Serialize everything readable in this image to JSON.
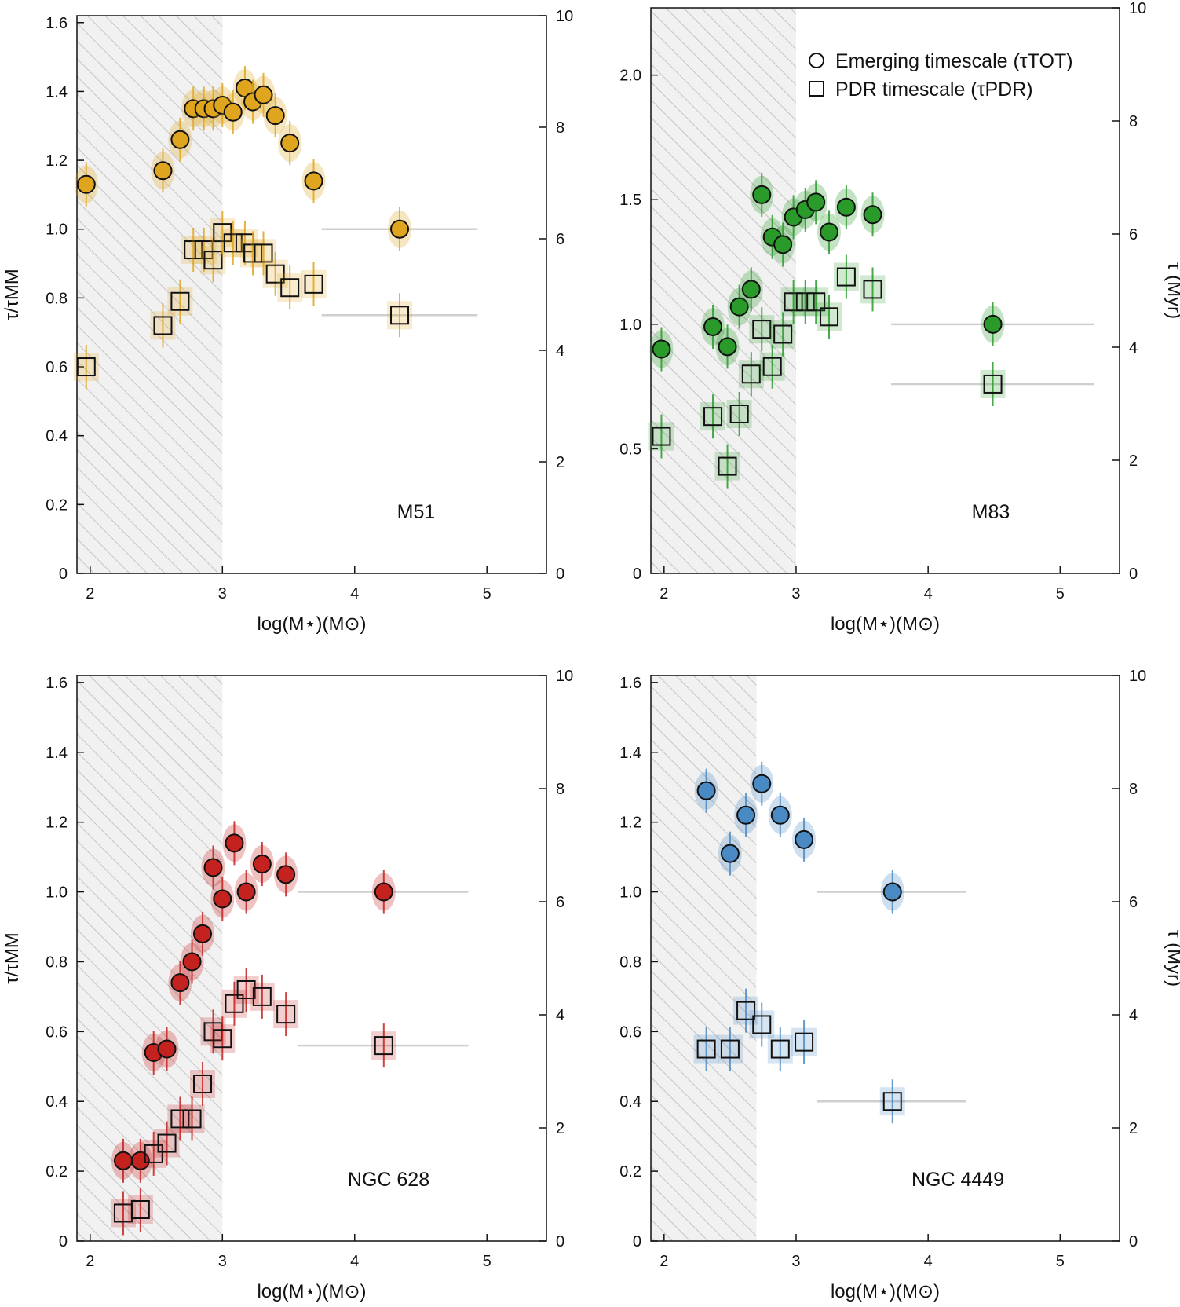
{
  "xlabel": "log(M⋆)(M⊙)",
  "ylabel_left": "τ/τMM",
  "ylabel_right": "τ (Myr)",
  "legend": {
    "circle": "Emerging timescale (τTOT)",
    "square": "PDR timescale (τPDR)"
  },
  "colors": {
    "M51": "#e0a51e",
    "M83": "#2a9a2a",
    "NGC 628": "#c4221f",
    "NGC 4449": "#4a8ac4",
    "hatch": "#c8c8c8",
    "shade": "#f1f1f1"
  },
  "chart_data": [
    {
      "type": "scatter",
      "galaxy": "M51",
      "xlim": [
        1.9,
        5.45
      ],
      "ylim": [
        0,
        1.62
      ],
      "yticks": [
        0,
        0.2,
        0.4,
        0.6,
        0.8,
        1.0,
        1.2,
        1.4,
        1.6
      ],
      "xticks": [
        2,
        3,
        4,
        5
      ],
      "y2lim": [
        0,
        10
      ],
      "y2ticks": [
        0,
        2,
        4,
        6,
        8,
        10
      ],
      "shade_until": 3.0,
      "emerging": {
        "x": [
          1.97,
          2.55,
          2.68,
          2.78,
          2.86,
          2.93,
          3.0,
          3.08,
          3.17,
          3.23,
          3.31,
          3.4,
          3.51,
          3.69
        ],
        "y": [
          1.13,
          1.17,
          1.26,
          1.35,
          1.35,
          1.35,
          1.36,
          1.34,
          1.41,
          1.37,
          1.39,
          1.33,
          1.25,
          1.14
        ]
      },
      "pdr": {
        "x": [
          1.97,
          2.55,
          2.68,
          2.78,
          2.86,
          2.93,
          3.0,
          3.08,
          3.17,
          3.23,
          3.31,
          3.4,
          3.51,
          3.69
        ],
        "y": [
          0.6,
          0.72,
          0.79,
          0.94,
          0.94,
          0.91,
          0.99,
          0.96,
          0.96,
          0.93,
          0.93,
          0.87,
          0.83,
          0.84
        ]
      },
      "mm_emerging": {
        "x": 4.34,
        "y": 1.0,
        "xrange": [
          3.75,
          4.93
        ]
      },
      "mm_pdr": {
        "x": 4.34,
        "y": 0.75,
        "xrange": [
          3.75,
          4.93
        ]
      }
    },
    {
      "type": "scatter",
      "galaxy": "M83",
      "xlim": [
        1.9,
        5.45
      ],
      "ylim": [
        0,
        2.27
      ],
      "yticks": [
        0,
        0.5,
        1.0,
        1.5,
        2.0
      ],
      "xticks": [
        2,
        3,
        4,
        5
      ],
      "y2lim": [
        0,
        10
      ],
      "y2ticks": [
        0,
        2,
        4,
        6,
        8,
        10
      ],
      "shade_until": 3.0,
      "emerging": {
        "x": [
          1.98,
          2.37,
          2.48,
          2.57,
          2.66,
          2.74,
          2.82,
          2.9,
          2.98,
          3.07,
          3.15,
          3.25,
          3.38,
          3.58
        ],
        "y": [
          0.9,
          0.99,
          0.91,
          1.07,
          1.14,
          1.52,
          1.35,
          1.32,
          1.43,
          1.46,
          1.49,
          1.37,
          1.47,
          1.44
        ]
      },
      "pdr": {
        "x": [
          1.98,
          2.37,
          2.48,
          2.57,
          2.66,
          2.74,
          2.82,
          2.9,
          2.98,
          3.07,
          3.15,
          3.25,
          3.38,
          3.58
        ],
        "y": [
          0.55,
          0.63,
          0.43,
          0.64,
          0.8,
          0.98,
          0.83,
          0.96,
          1.09,
          1.09,
          1.09,
          1.03,
          1.19,
          1.14
        ]
      },
      "mm_emerging": {
        "x": 4.49,
        "y": 1.0,
        "xrange": [
          3.72,
          5.26
        ]
      },
      "mm_pdr": {
        "x": 4.49,
        "y": 0.76,
        "xrange": [
          3.72,
          5.26
        ]
      }
    },
    {
      "type": "scatter",
      "galaxy": "NGC 628",
      "xlim": [
        1.9,
        5.45
      ],
      "ylim": [
        0,
        1.62
      ],
      "yticks": [
        0,
        0.2,
        0.4,
        0.6,
        0.8,
        1.0,
        1.2,
        1.4,
        1.6
      ],
      "xticks": [
        2,
        3,
        4,
        5
      ],
      "y2lim": [
        0,
        10
      ],
      "y2ticks": [
        0,
        2,
        4,
        6,
        8,
        10
      ],
      "shade_until": 3.0,
      "emerging": {
        "x": [
          2.25,
          2.38,
          2.48,
          2.58,
          2.68,
          2.77,
          2.85,
          2.93,
          3.0,
          3.09,
          3.18,
          3.3,
          3.48
        ],
        "y": [
          0.23,
          0.23,
          0.54,
          0.55,
          0.74,
          0.8,
          0.88,
          1.07,
          0.98,
          1.14,
          1.0,
          1.08,
          1.05
        ]
      },
      "pdr": {
        "x": [
          2.25,
          2.38,
          2.48,
          2.58,
          2.68,
          2.77,
          2.85,
          2.93,
          3.0,
          3.09,
          3.18,
          3.3,
          3.48
        ],
        "y": [
          0.08,
          0.09,
          0.25,
          0.28,
          0.35,
          0.35,
          0.45,
          0.6,
          0.58,
          0.68,
          0.72,
          0.7,
          0.65
        ]
      },
      "mm_emerging": {
        "x": 4.22,
        "y": 1.0,
        "xrange": [
          3.57,
          4.86
        ]
      },
      "mm_pdr": {
        "x": 4.22,
        "y": 0.56,
        "xrange": [
          3.57,
          4.86
        ]
      }
    },
    {
      "type": "scatter",
      "galaxy": "NGC 4449",
      "xlim": [
        1.9,
        5.45
      ],
      "ylim": [
        0,
        1.62
      ],
      "yticks": [
        0,
        0.2,
        0.4,
        0.6,
        0.8,
        1.0,
        1.2,
        1.4,
        1.6
      ],
      "xticks": [
        2,
        3,
        4,
        5
      ],
      "y2lim": [
        0,
        10
      ],
      "y2ticks": [
        0,
        2,
        4,
        6,
        8,
        10
      ],
      "shade_until": 2.7,
      "emerging": {
        "x": [
          2.32,
          2.5,
          2.62,
          2.74,
          2.88,
          3.06
        ],
        "y": [
          1.29,
          1.11,
          1.22,
          1.31,
          1.22,
          1.15
        ]
      },
      "pdr": {
        "x": [
          2.32,
          2.5,
          2.62,
          2.74,
          2.88,
          3.06
        ],
        "y": [
          0.55,
          0.55,
          0.66,
          0.62,
          0.55,
          0.57
        ]
      },
      "mm_emerging": {
        "x": 3.73,
        "y": 1.0,
        "xrange": [
          3.16,
          4.29
        ]
      },
      "mm_pdr": {
        "x": 3.73,
        "y": 0.4,
        "xrange": [
          3.16,
          4.29
        ]
      }
    }
  ]
}
